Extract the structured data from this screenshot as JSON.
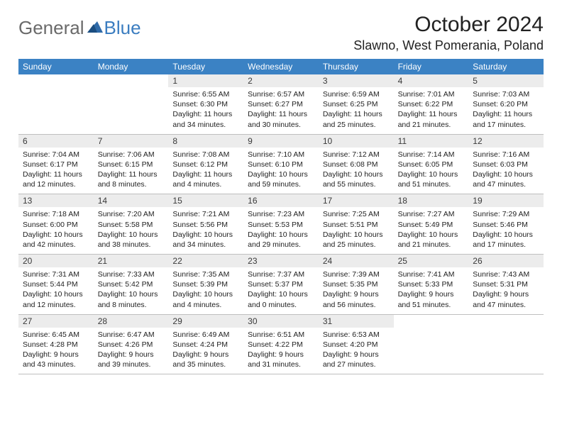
{
  "logo": {
    "general": "General",
    "blue": "Blue"
  },
  "title": "October 2024",
  "location": "Slawno, West Pomerania, Poland",
  "colors": {
    "header_bg": "#3b82c4",
    "header_text": "#ffffff",
    "daynum_bg": "#ececec",
    "border": "#bfbfbf",
    "logo_gray": "#6a6a6a",
    "logo_blue": "#3b7dc0"
  },
  "weekdays": [
    "Sunday",
    "Monday",
    "Tuesday",
    "Wednesday",
    "Thursday",
    "Friday",
    "Saturday"
  ],
  "weeks": [
    [
      null,
      null,
      {
        "n": "1",
        "sr": "6:55 AM",
        "ss": "6:30 PM",
        "dl": "11 hours and 34 minutes."
      },
      {
        "n": "2",
        "sr": "6:57 AM",
        "ss": "6:27 PM",
        "dl": "11 hours and 30 minutes."
      },
      {
        "n": "3",
        "sr": "6:59 AM",
        "ss": "6:25 PM",
        "dl": "11 hours and 25 minutes."
      },
      {
        "n": "4",
        "sr": "7:01 AM",
        "ss": "6:22 PM",
        "dl": "11 hours and 21 minutes."
      },
      {
        "n": "5",
        "sr": "7:03 AM",
        "ss": "6:20 PM",
        "dl": "11 hours and 17 minutes."
      }
    ],
    [
      {
        "n": "6",
        "sr": "7:04 AM",
        "ss": "6:17 PM",
        "dl": "11 hours and 12 minutes."
      },
      {
        "n": "7",
        "sr": "7:06 AM",
        "ss": "6:15 PM",
        "dl": "11 hours and 8 minutes."
      },
      {
        "n": "8",
        "sr": "7:08 AM",
        "ss": "6:12 PM",
        "dl": "11 hours and 4 minutes."
      },
      {
        "n": "9",
        "sr": "7:10 AM",
        "ss": "6:10 PM",
        "dl": "10 hours and 59 minutes."
      },
      {
        "n": "10",
        "sr": "7:12 AM",
        "ss": "6:08 PM",
        "dl": "10 hours and 55 minutes."
      },
      {
        "n": "11",
        "sr": "7:14 AM",
        "ss": "6:05 PM",
        "dl": "10 hours and 51 minutes."
      },
      {
        "n": "12",
        "sr": "7:16 AM",
        "ss": "6:03 PM",
        "dl": "10 hours and 47 minutes."
      }
    ],
    [
      {
        "n": "13",
        "sr": "7:18 AM",
        "ss": "6:00 PM",
        "dl": "10 hours and 42 minutes."
      },
      {
        "n": "14",
        "sr": "7:20 AM",
        "ss": "5:58 PM",
        "dl": "10 hours and 38 minutes."
      },
      {
        "n": "15",
        "sr": "7:21 AM",
        "ss": "5:56 PM",
        "dl": "10 hours and 34 minutes."
      },
      {
        "n": "16",
        "sr": "7:23 AM",
        "ss": "5:53 PM",
        "dl": "10 hours and 29 minutes."
      },
      {
        "n": "17",
        "sr": "7:25 AM",
        "ss": "5:51 PM",
        "dl": "10 hours and 25 minutes."
      },
      {
        "n": "18",
        "sr": "7:27 AM",
        "ss": "5:49 PM",
        "dl": "10 hours and 21 minutes."
      },
      {
        "n": "19",
        "sr": "7:29 AM",
        "ss": "5:46 PM",
        "dl": "10 hours and 17 minutes."
      }
    ],
    [
      {
        "n": "20",
        "sr": "7:31 AM",
        "ss": "5:44 PM",
        "dl": "10 hours and 12 minutes."
      },
      {
        "n": "21",
        "sr": "7:33 AM",
        "ss": "5:42 PM",
        "dl": "10 hours and 8 minutes."
      },
      {
        "n": "22",
        "sr": "7:35 AM",
        "ss": "5:39 PM",
        "dl": "10 hours and 4 minutes."
      },
      {
        "n": "23",
        "sr": "7:37 AM",
        "ss": "5:37 PM",
        "dl": "10 hours and 0 minutes."
      },
      {
        "n": "24",
        "sr": "7:39 AM",
        "ss": "5:35 PM",
        "dl": "9 hours and 56 minutes."
      },
      {
        "n": "25",
        "sr": "7:41 AM",
        "ss": "5:33 PM",
        "dl": "9 hours and 51 minutes."
      },
      {
        "n": "26",
        "sr": "7:43 AM",
        "ss": "5:31 PM",
        "dl": "9 hours and 47 minutes."
      }
    ],
    [
      {
        "n": "27",
        "sr": "6:45 AM",
        "ss": "4:28 PM",
        "dl": "9 hours and 43 minutes."
      },
      {
        "n": "28",
        "sr": "6:47 AM",
        "ss": "4:26 PM",
        "dl": "9 hours and 39 minutes."
      },
      {
        "n": "29",
        "sr": "6:49 AM",
        "ss": "4:24 PM",
        "dl": "9 hours and 35 minutes."
      },
      {
        "n": "30",
        "sr": "6:51 AM",
        "ss": "4:22 PM",
        "dl": "9 hours and 31 minutes."
      },
      {
        "n": "31",
        "sr": "6:53 AM",
        "ss": "4:20 PM",
        "dl": "9 hours and 27 minutes."
      },
      null,
      null
    ]
  ],
  "labels": {
    "sunrise": "Sunrise:",
    "sunset": "Sunset:",
    "daylight": "Daylight:"
  }
}
